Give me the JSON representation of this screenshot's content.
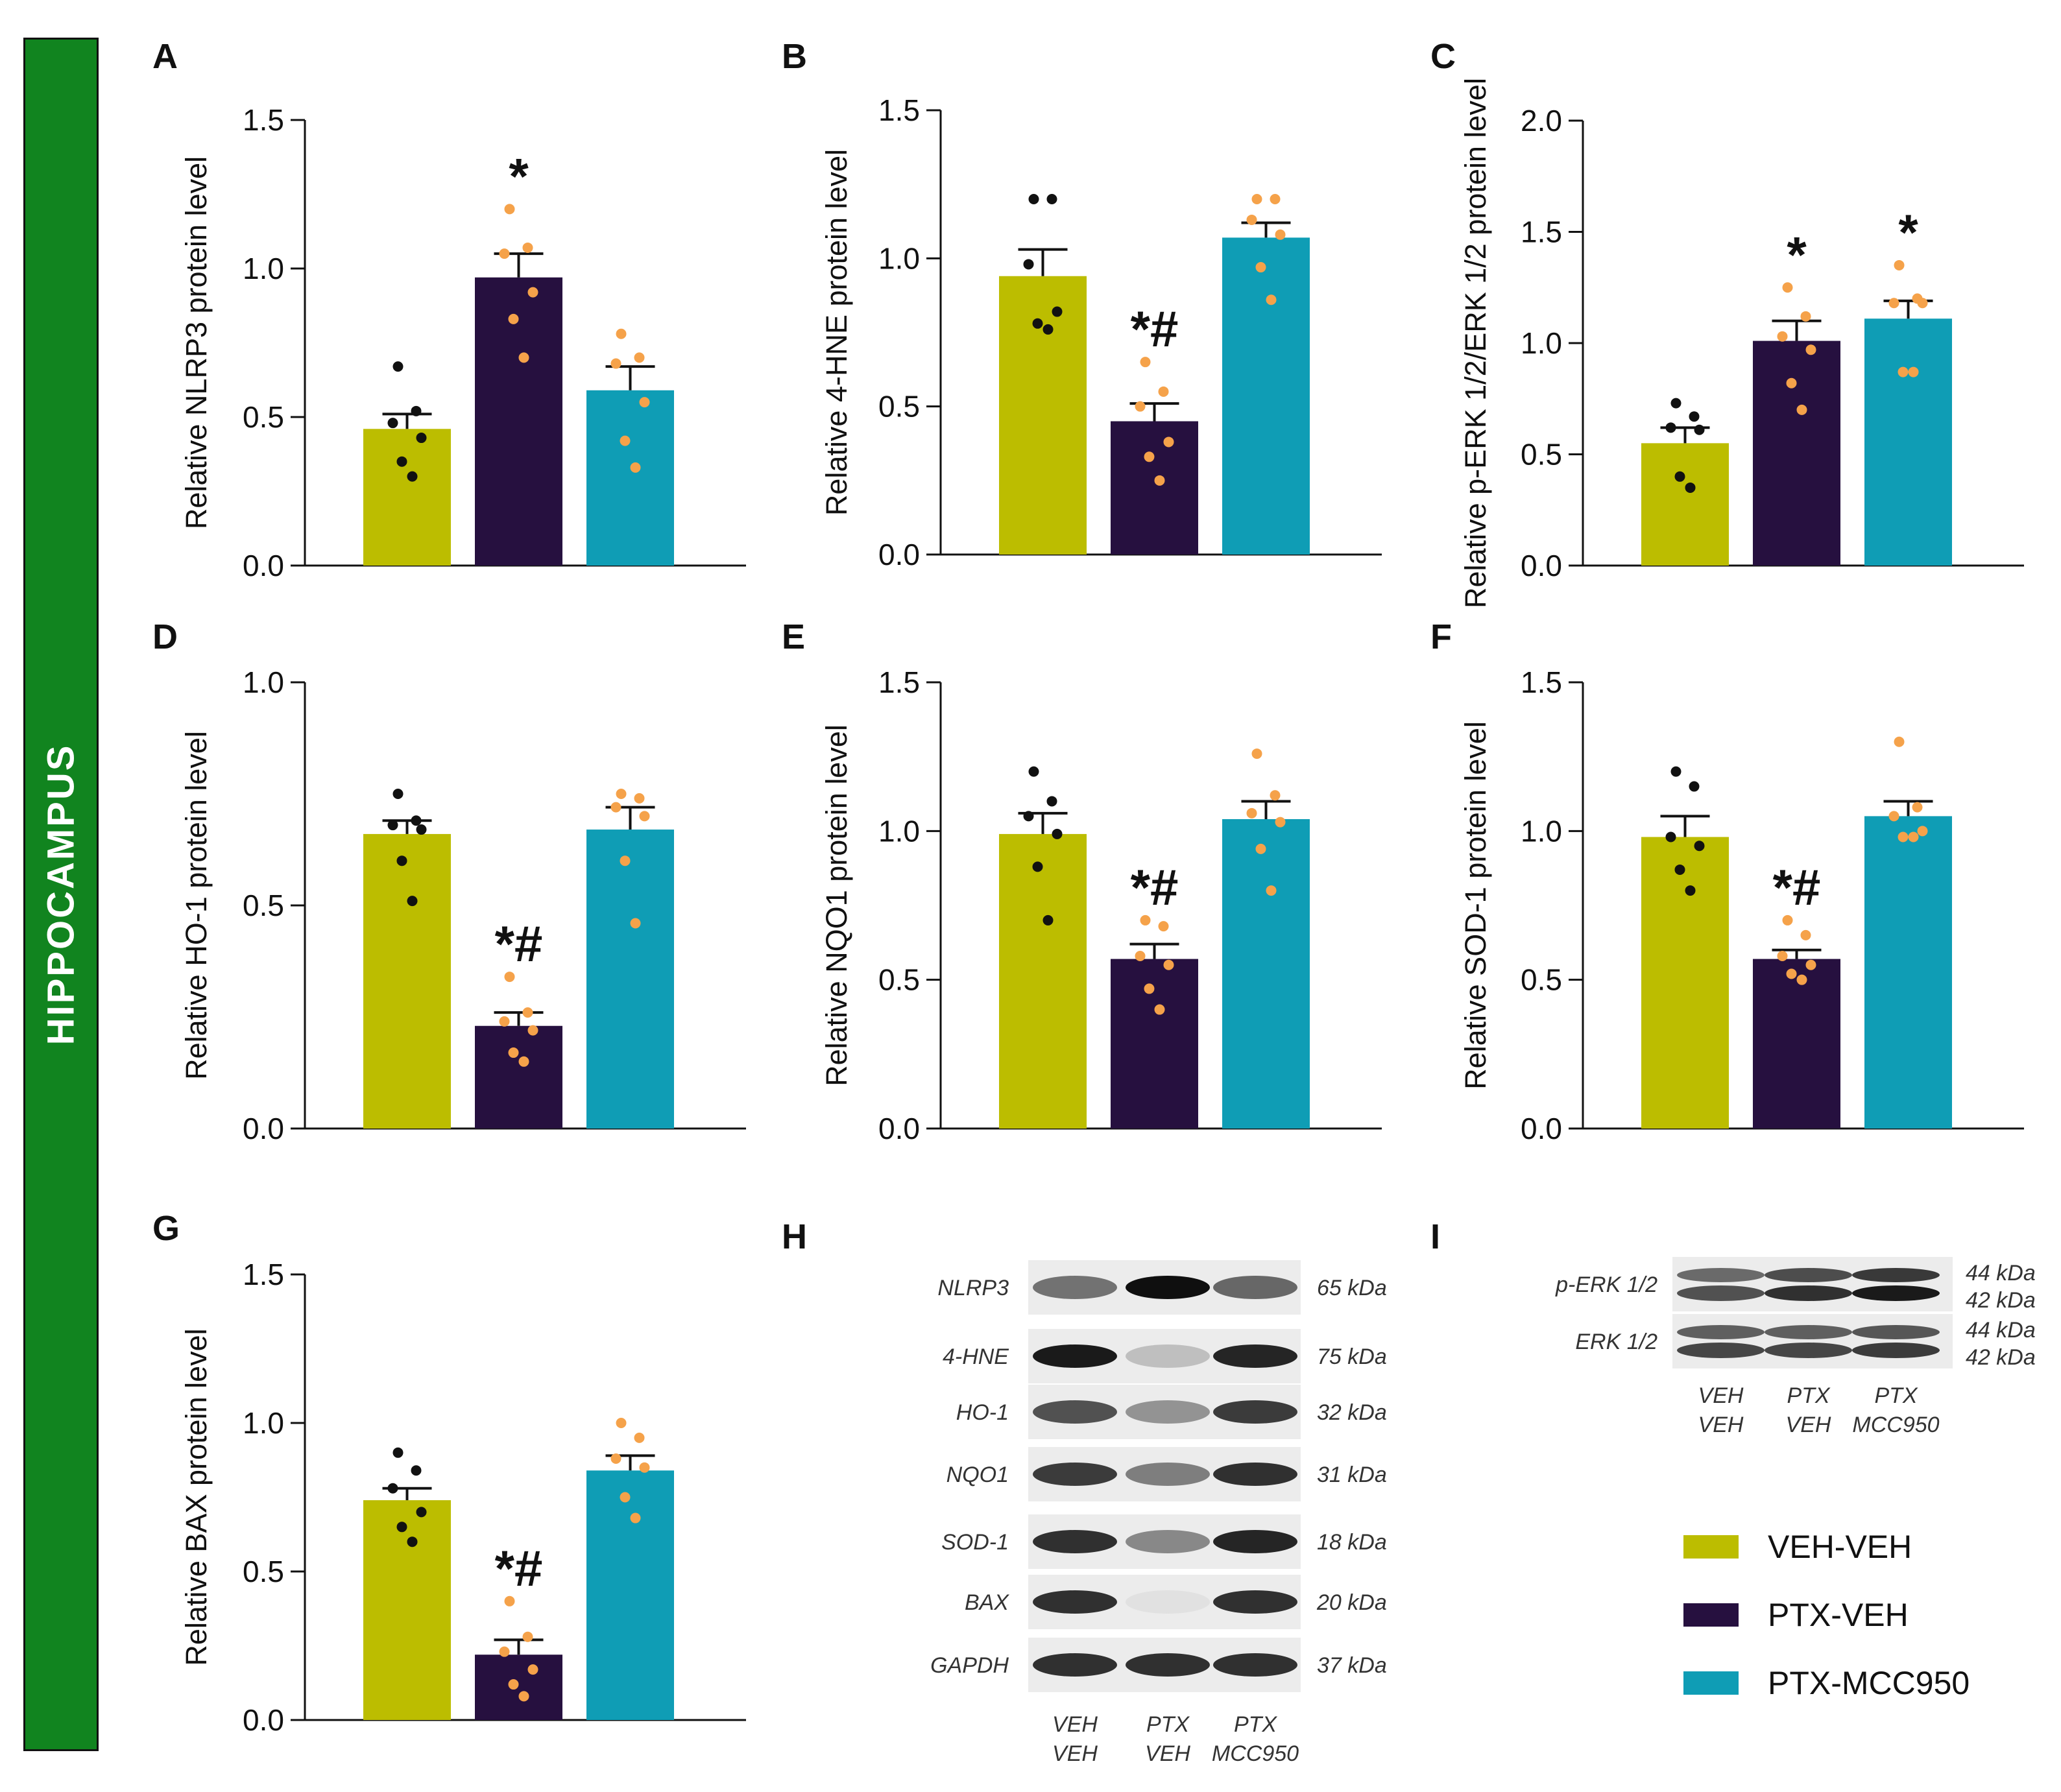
{
  "sidebar": {
    "label": "HIPPOCAMPUS"
  },
  "colors": {
    "VEH-VEH": "#bcbd00",
    "PTX-VEH": "#26103f",
    "PTX-MCC950": "#0f9db5",
    "dots_dark": "#111111",
    "dots_orange": "#f5a24a"
  },
  "legend": [
    {
      "label": "VEH-VEH",
      "color": "#bcbd00"
    },
    {
      "label": "PTX-VEH",
      "color": "#26103f"
    },
    {
      "label": "PTX-MCC950",
      "color": "#0f9db5"
    }
  ],
  "chart_data": [
    {
      "panel": "A",
      "type": "bar",
      "categories": [
        "VEH-VEH",
        "PTX-VEH",
        "PTX-MCC950"
      ],
      "values": [
        0.46,
        0.97,
        0.59
      ],
      "sem": [
        0.05,
        0.08,
        0.08
      ],
      "points": [
        [
          0.67,
          0.52,
          0.48,
          0.43,
          0.35,
          0.3
        ],
        [
          1.2,
          1.07,
          1.05,
          0.92,
          0.83,
          0.7
        ],
        [
          0.78,
          0.7,
          0.68,
          0.55,
          0.42,
          0.33
        ]
      ],
      "significance": [
        "",
        "*",
        ""
      ],
      "ylabel": "Relative NLRP3 protein level",
      "ylim": [
        0,
        1.5
      ],
      "yticks": [
        "0.0",
        "0.5",
        "1.0",
        "1.5"
      ]
    },
    {
      "panel": "B",
      "type": "bar",
      "categories": [
        "VEH-VEH",
        "PTX-VEH",
        "PTX-MCC950"
      ],
      "values": [
        0.94,
        0.45,
        1.07
      ],
      "sem": [
        0.09,
        0.06,
        0.05
      ],
      "points": [
        [
          1.2,
          1.2,
          0.98,
          0.82,
          0.78,
          0.76
        ],
        [
          0.65,
          0.55,
          0.5,
          0.38,
          0.33,
          0.25
        ],
        [
          1.2,
          1.2,
          1.13,
          1.08,
          0.97,
          0.86
        ]
      ],
      "significance": [
        "",
        "*#",
        ""
      ],
      "ylabel": "Relative 4-HNE protein level",
      "ylim": [
        0,
        1.5
      ],
      "yticks": [
        "0.0",
        "0.5",
        "1.0",
        "1.5"
      ]
    },
    {
      "panel": "C",
      "type": "bar",
      "categories": [
        "VEH-VEH",
        "PTX-VEH",
        "PTX-MCC950"
      ],
      "values": [
        0.55,
        1.01,
        1.11
      ],
      "sem": [
        0.07,
        0.09,
        0.08
      ],
      "points": [
        [
          0.73,
          0.67,
          0.62,
          0.61,
          0.4,
          0.35
        ],
        [
          1.25,
          1.12,
          1.03,
          0.97,
          0.82,
          0.7
        ],
        [
          1.35,
          1.2,
          1.18,
          1.18,
          0.87,
          0.87
        ]
      ],
      "significance": [
        "",
        "*",
        "*"
      ],
      "ylabel": "Relative p-ERK 1/2/ERK 1/2 protein level",
      "ylim": [
        0,
        2.0
      ],
      "yticks": [
        "0.0",
        "0.5",
        "1.0",
        "1.5",
        "2.0"
      ]
    },
    {
      "panel": "D",
      "type": "bar",
      "categories": [
        "VEH-VEH",
        "PTX-VEH",
        "PTX-MCC950"
      ],
      "values": [
        0.66,
        0.23,
        0.67
      ],
      "sem": [
        0.03,
        0.03,
        0.05
      ],
      "points": [
        [
          0.75,
          0.69,
          0.68,
          0.67,
          0.6,
          0.51
        ],
        [
          0.34,
          0.26,
          0.24,
          0.22,
          0.17,
          0.15
        ],
        [
          0.75,
          0.74,
          0.72,
          0.7,
          0.6,
          0.46
        ]
      ],
      "significance": [
        "",
        "*#",
        ""
      ],
      "ylabel": "Relative HO-1 protein level",
      "ylim": [
        0,
        1.0
      ],
      "yticks": [
        "0.0",
        "0.5",
        "1.0"
      ]
    },
    {
      "panel": "E",
      "type": "bar",
      "categories": [
        "VEH-VEH",
        "PTX-VEH",
        "PTX-MCC950"
      ],
      "values": [
        0.99,
        0.57,
        1.04
      ],
      "sem": [
        0.07,
        0.05,
        0.06
      ],
      "points": [
        [
          1.2,
          1.1,
          1.05,
          0.99,
          0.88,
          0.7
        ],
        [
          0.7,
          0.68,
          0.58,
          0.55,
          0.47,
          0.4
        ],
        [
          1.26,
          1.12,
          1.06,
          1.03,
          0.94,
          0.8
        ]
      ],
      "significance": [
        "",
        "*#",
        ""
      ],
      "ylabel": "Relative NQO1 protein level",
      "ylim": [
        0,
        1.5
      ],
      "yticks": [
        "0.0",
        "0.5",
        "1.0",
        "1.5"
      ]
    },
    {
      "panel": "F",
      "type": "bar",
      "categories": [
        "VEH-VEH",
        "PTX-VEH",
        "PTX-MCC950"
      ],
      "values": [
        0.98,
        0.57,
        1.05
      ],
      "sem": [
        0.07,
        0.03,
        0.05
      ],
      "points": [
        [
          1.2,
          1.15,
          0.98,
          0.95,
          0.87,
          0.8
        ],
        [
          0.7,
          0.65,
          0.58,
          0.55,
          0.52,
          0.5
        ],
        [
          1.3,
          1.08,
          1.05,
          1.0,
          0.98,
          0.98
        ]
      ],
      "significance": [
        "",
        "*#",
        ""
      ],
      "ylabel": "Relative SOD-1 protein level",
      "ylim": [
        0,
        1.5
      ],
      "yticks": [
        "0.0",
        "0.5",
        "1.0",
        "1.5"
      ]
    },
    {
      "panel": "G",
      "type": "bar",
      "categories": [
        "VEH-VEH",
        "PTX-VEH",
        "PTX-MCC950"
      ],
      "values": [
        0.74,
        0.22,
        0.84
      ],
      "sem": [
        0.04,
        0.05,
        0.05
      ],
      "points": [
        [
          0.9,
          0.84,
          0.78,
          0.7,
          0.65,
          0.6
        ],
        [
          0.4,
          0.28,
          0.23,
          0.17,
          0.12,
          0.08
        ],
        [
          1.0,
          0.95,
          0.88,
          0.85,
          0.75,
          0.68
        ]
      ],
      "significance": [
        "",
        "*#",
        ""
      ],
      "ylabel": "Relative BAX protein level",
      "ylim": [
        0,
        1.5
      ],
      "yticks": [
        "0.0",
        "0.5",
        "1.0",
        "1.5"
      ]
    }
  ],
  "blot_H": {
    "letter": "H",
    "rows": [
      {
        "protein": "NLRP3",
        "size": "65 kDa",
        "intensity": [
          0.55,
          1.0,
          0.6
        ],
        "double": false
      },
      {
        "protein": "4-HNE",
        "size": "75 kDa",
        "intensity": [
          0.95,
          0.2,
          0.9
        ],
        "double": false
      },
      {
        "protein": "HO-1",
        "size": "32 kDa",
        "intensity": [
          0.7,
          0.4,
          0.8
        ],
        "double": false
      },
      {
        "protein": "NQO1",
        "size": "31 kDa",
        "intensity": [
          0.8,
          0.5,
          0.85
        ],
        "double": false
      },
      {
        "protein": "SOD-1",
        "size": "18 kDa",
        "intensity": [
          0.85,
          0.45,
          0.9
        ],
        "double": false
      },
      {
        "protein": "BAX",
        "size": "20 kDa",
        "intensity": [
          0.85,
          0.05,
          0.85
        ],
        "double": false
      },
      {
        "protein": "GAPDH",
        "size": "37 kDa",
        "intensity": [
          0.85,
          0.85,
          0.85
        ],
        "double": false
      }
    ],
    "lanes": [
      [
        "VEH",
        "VEH"
      ],
      [
        "PTX",
        "VEH"
      ],
      [
        "PTX",
        "MCC950"
      ]
    ]
  },
  "blot_I": {
    "letter": "I",
    "rows": [
      {
        "protein": "p-ERK 1/2",
        "sizes": [
          "44 kDa",
          "42 kDa"
        ],
        "intensity": [
          0.7,
          0.85,
          0.95
        ]
      },
      {
        "protein": "ERK 1/2",
        "sizes": [
          "44 kDa",
          "42 kDa"
        ],
        "intensity": [
          0.75,
          0.75,
          0.8
        ]
      }
    ],
    "lanes": [
      [
        "VEH",
        "VEH"
      ],
      [
        "PTX",
        "VEH"
      ],
      [
        "PTX",
        "MCC950"
      ]
    ]
  }
}
